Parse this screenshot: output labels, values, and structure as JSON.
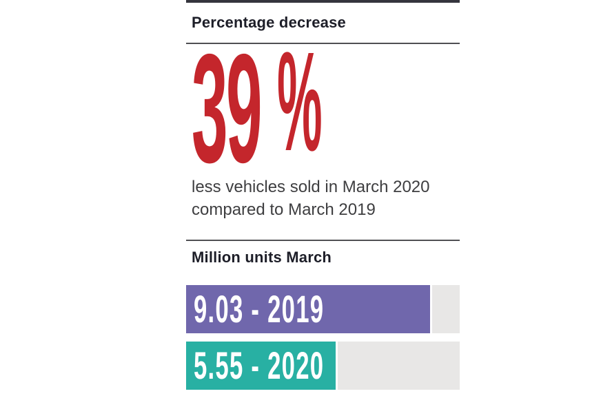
{
  "stat": {
    "heading": "Percentage decrease",
    "value": "39",
    "unit": "%",
    "caption_line1": "less vehicles sold in March 2020",
    "caption_line2": "compared to March 2019",
    "accent_color": "#c4262c"
  },
  "bars_section": {
    "heading": "Million units March",
    "track_color": "#e8e7e6",
    "bars": [
      {
        "label": "9.03 - 2019",
        "value": 9.03,
        "year": "2019",
        "color": "#7067ac",
        "fill_style": "width:90%;background:#7067ac"
      },
      {
        "label": "5.55 - 2020",
        "value": 5.55,
        "year": "2020",
        "color": "#28b0a3",
        "fill_style": "width:55.5%;background:#28b0a3"
      }
    ]
  },
  "chart_data": {
    "type": "bar",
    "orientation": "horizontal",
    "title": "Million units March",
    "categories": [
      "2019",
      "2020"
    ],
    "series": [
      {
        "name": "Vehicles sold (million units, March)",
        "values": [
          9.03,
          5.55
        ]
      }
    ],
    "bar_labels": [
      "9.03 - 2019",
      "5.55 - 2020"
    ],
    "bar_colors": [
      "#7067ac",
      "#28b0a3"
    ],
    "xlim": [
      0,
      10
    ],
    "grid": false,
    "legend": false,
    "annotations": [
      "39% less vehicles sold in March 2020 compared to March 2019"
    ]
  }
}
